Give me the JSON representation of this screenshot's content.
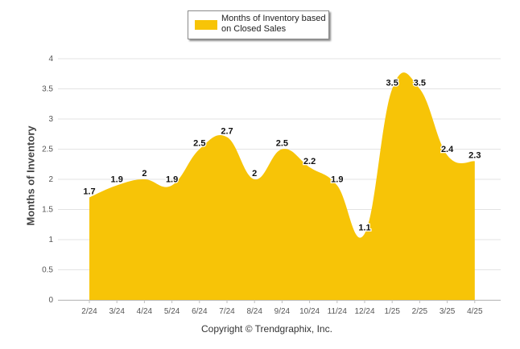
{
  "chart_data": {
    "type": "area",
    "categories": [
      "2/24",
      "3/24",
      "4/24",
      "5/24",
      "6/24",
      "7/24",
      "8/24",
      "9/24",
      "10/24",
      "11/24",
      "12/24",
      "1/25",
      "2/25",
      "3/25",
      "4/25"
    ],
    "series": [
      {
        "name": "Months of Inventory based on Closed Sales",
        "values": [
          1.7,
          1.9,
          2,
          1.9,
          2.5,
          2.7,
          2,
          2.5,
          2.2,
          1.9,
          1.1,
          3.5,
          3.5,
          2.4,
          2.3
        ],
        "color": "#f7c407"
      }
    ],
    "ylabel": "Months of Inventory",
    "ylim": [
      0,
      4
    ],
    "yticks": [
      "0",
      "0.5",
      "1",
      "1.5",
      "2",
      "2.5",
      "3",
      "3.5",
      "4"
    ],
    "grid": true,
    "legend_position": "top-center",
    "data_labels": [
      "1.7",
      "1.9",
      "2",
      "1.9",
      "2.5",
      "2.7",
      "2",
      "2.5",
      "2.2",
      "1.9",
      "1.1",
      "3.5",
      "3.5",
      "2.4",
      "2.3"
    ]
  },
  "footer": {
    "copyright": "Copyright © Trendgraphix, Inc."
  }
}
